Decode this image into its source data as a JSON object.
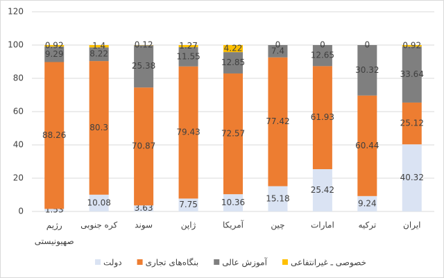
{
  "chart_data": {
    "type": "stacked-bar",
    "categories": [
      "رژیم صهیونیستی",
      "کره جنوبی",
      "سوند",
      "ژاپن",
      "آمریکا",
      "چین",
      "امارات",
      "ترکیه",
      "ایران"
    ],
    "series": [
      {
        "name": "دولت",
        "color": "#dae3f3",
        "values": [
          1.53,
          10.08,
          3.63,
          7.75,
          10.36,
          15.18,
          25.42,
          9.24,
          40.32
        ]
      },
      {
        "name": "بنگاه‌های تجاری",
        "color": "#ed7d31",
        "values": [
          88.26,
          80.3,
          70.87,
          79.43,
          72.57,
          77.42,
          61.93,
          60.44,
          25.12
        ]
      },
      {
        "name": "آموزش عالی",
        "color": "#7f7f7f",
        "values": [
          9.29,
          8.22,
          25.38,
          11.55,
          12.85,
          7.4,
          12.65,
          30.32,
          33.64
        ]
      },
      {
        "name": "خصوصی ـ غیرانتفاعی",
        "color": "#ffc000",
        "values": [
          0.92,
          1.4,
          0.12,
          1.27,
          4.22,
          0,
          0,
          0,
          0.92
        ]
      }
    ],
    "ylim": [
      0,
      120
    ],
    "yticks": [
      0,
      20,
      40,
      60,
      80,
      100,
      120
    ],
    "grid": true,
    "legend": "bottom"
  }
}
